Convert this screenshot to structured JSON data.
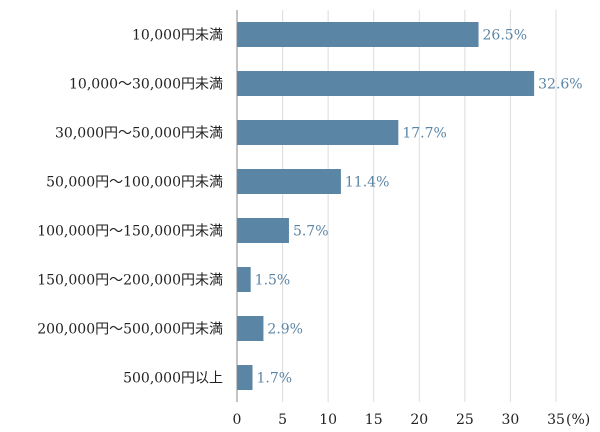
{
  "chart_data": {
    "type": "bar",
    "orientation": "horizontal",
    "title": "",
    "xlabel": "",
    "ylabel": "",
    "x_unit_label": "(%)",
    "xlim": [
      0,
      35
    ],
    "x_ticks": [
      0,
      5,
      10,
      15,
      20,
      25,
      30,
      35
    ],
    "grid": true,
    "bar_color": "#5b85a5",
    "label_color": "#5b85a5",
    "categories": [
      "10,000円未満",
      "10,000〜30,000円未満",
      "30,000円〜50,000円未満",
      "50,000円〜100,000円未満",
      "100,000円〜150,000円未満",
      "150,000円〜200,000円未満",
      "200,000円〜500,000円未満",
      "500,000円以上"
    ],
    "values": [
      26.5,
      32.6,
      17.7,
      11.4,
      5.7,
      1.5,
      2.9,
      1.7
    ],
    "value_labels": [
      "26.5%",
      "32.6%",
      "17.7%",
      "11.4%",
      "5.7%",
      "1.5%",
      "2.9%",
      "1.7%"
    ]
  }
}
